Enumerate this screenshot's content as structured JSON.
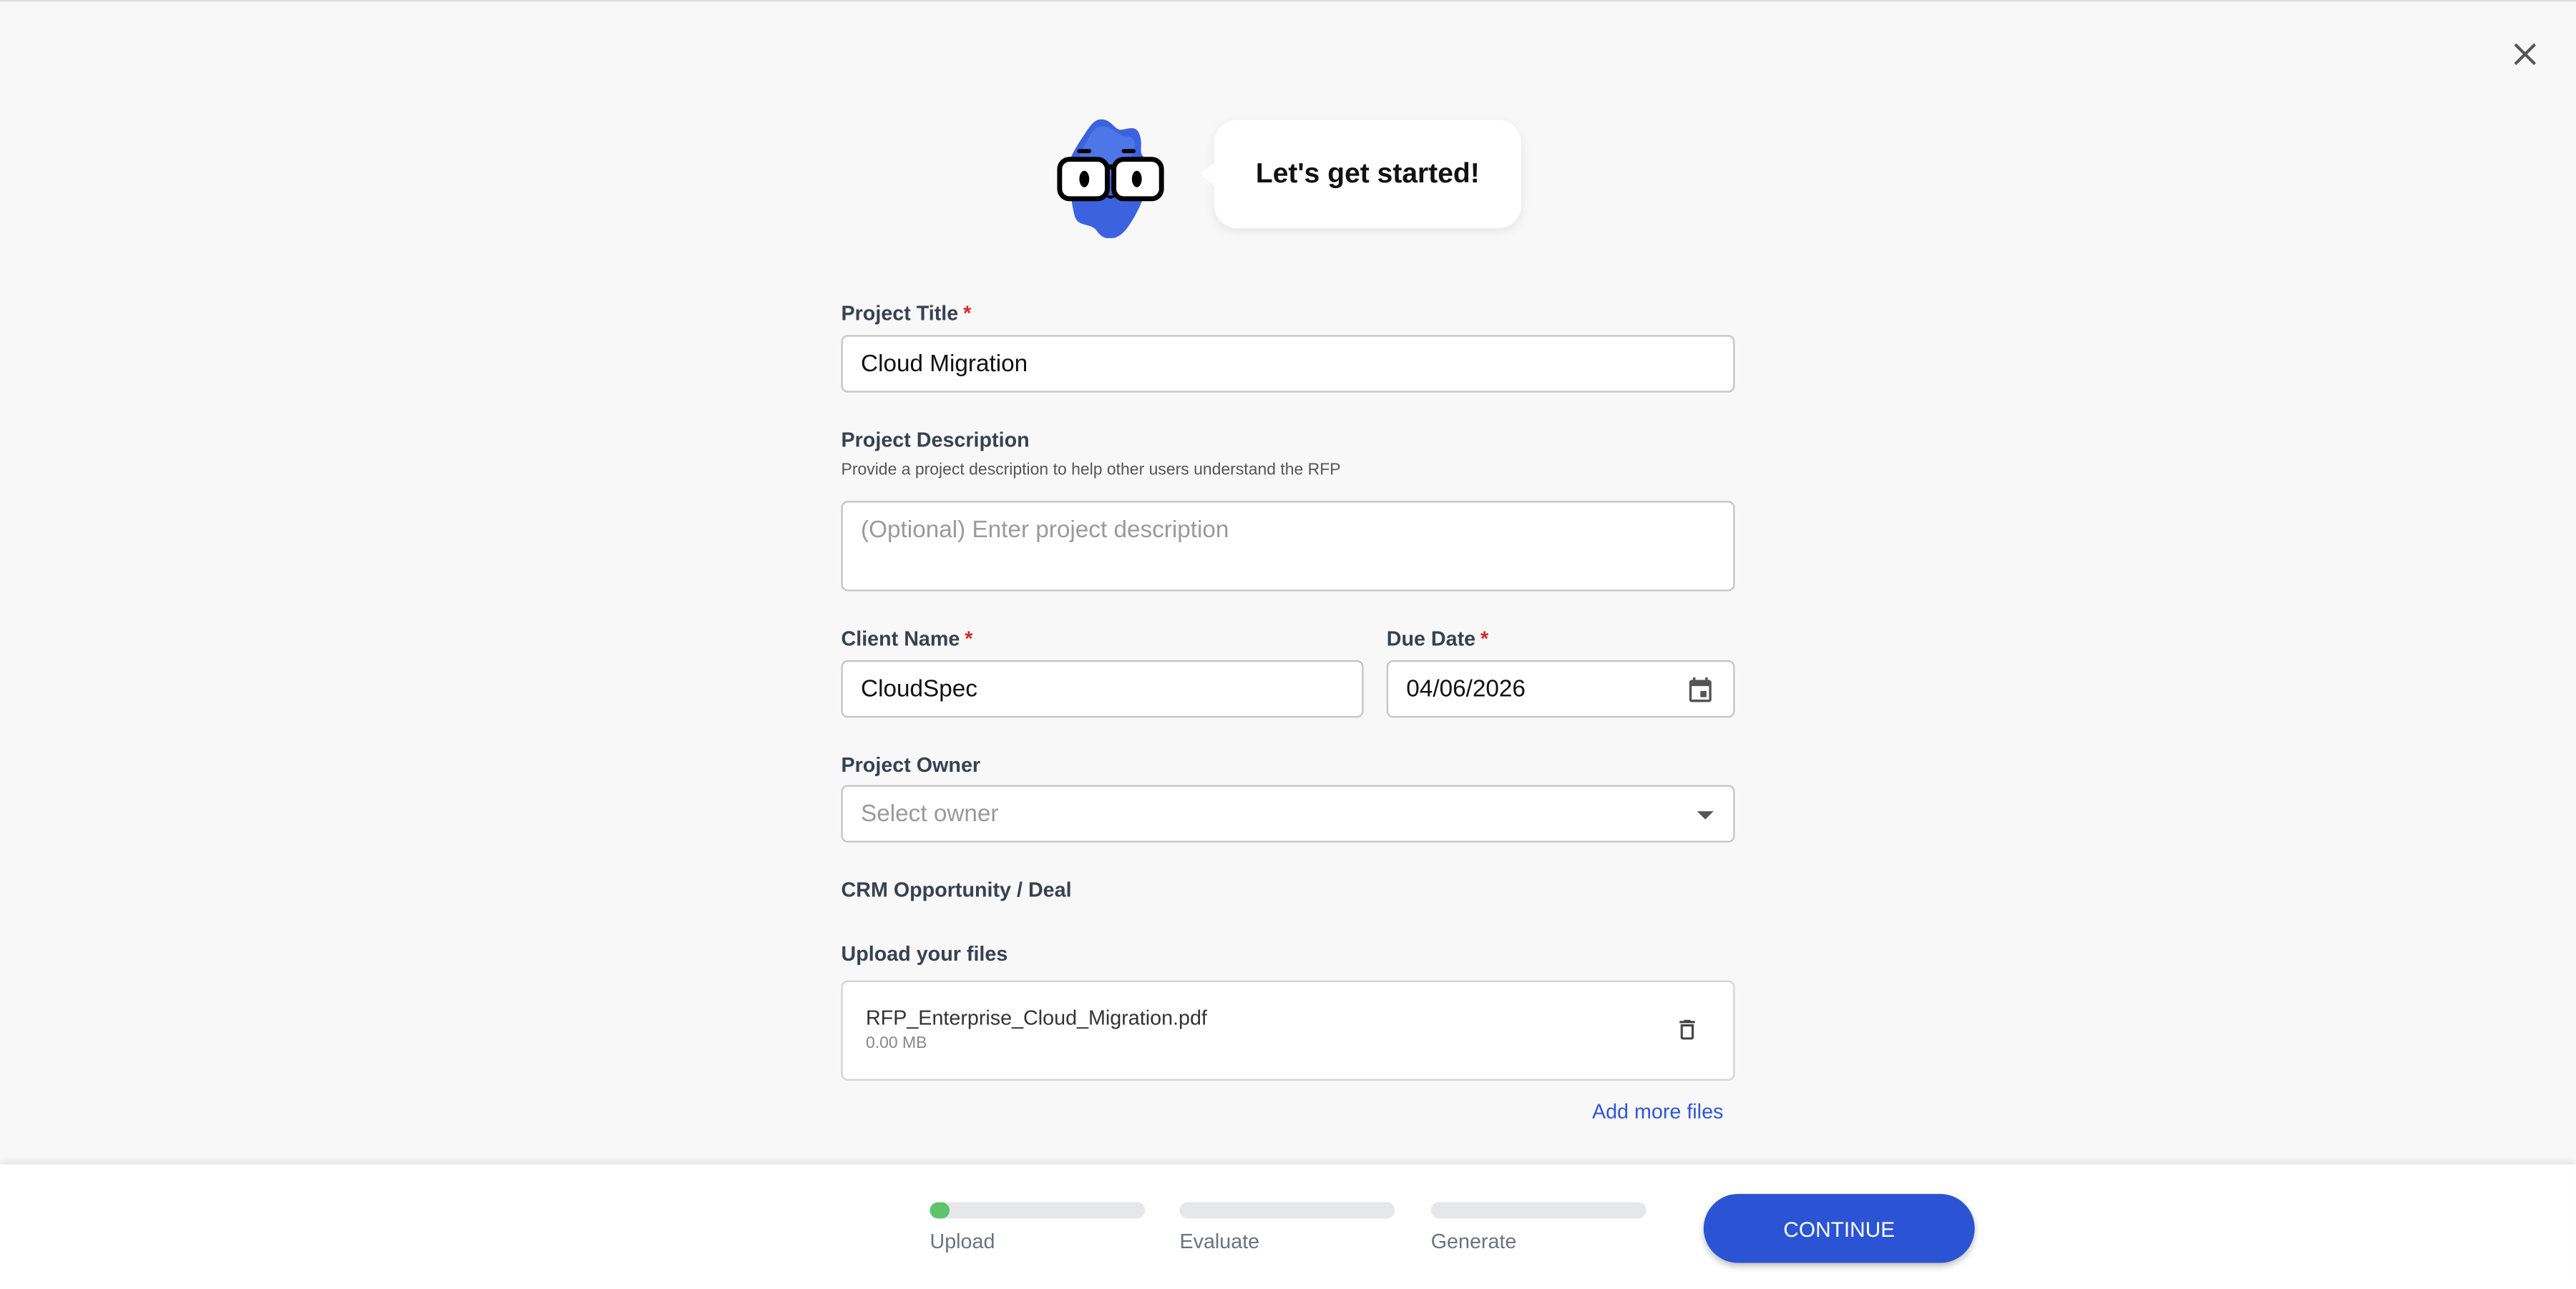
{
  "header": {
    "greeting": "Let's get started!",
    "close_icon": "close-icon",
    "mascot": "mascot-icon"
  },
  "form": {
    "project_title": {
      "label": "Project Title",
      "required": "*",
      "value": "Cloud Migration"
    },
    "project_description": {
      "label": "Project Description",
      "helper": "Provide a project description to help other users understand the RFP",
      "placeholder": "(Optional) Enter project description"
    },
    "client_name": {
      "label": "Client Name",
      "required": "*",
      "value": "CloudSpec"
    },
    "due_date": {
      "label": "Due Date",
      "required": "*",
      "value": "04/06/2026"
    },
    "project_owner": {
      "label": "Project Owner",
      "placeholder": "Select owner"
    },
    "crm": {
      "label": "CRM Opportunity / Deal"
    },
    "upload": {
      "label": "Upload your files",
      "files": [
        {
          "name": "RFP_Enterprise_Cloud_Migration.pdf",
          "size": "0.00 MB"
        }
      ],
      "add_more": "Add more files"
    }
  },
  "footer": {
    "steps": [
      {
        "label": "Upload",
        "progress": 0.05
      },
      {
        "label": "Evaluate",
        "progress": 0
      },
      {
        "label": "Generate",
        "progress": 0
      }
    ],
    "continue_label": "CONTINUE",
    "colors": {
      "progress": "#5cc46c",
      "accent": "#2b54d4"
    }
  }
}
